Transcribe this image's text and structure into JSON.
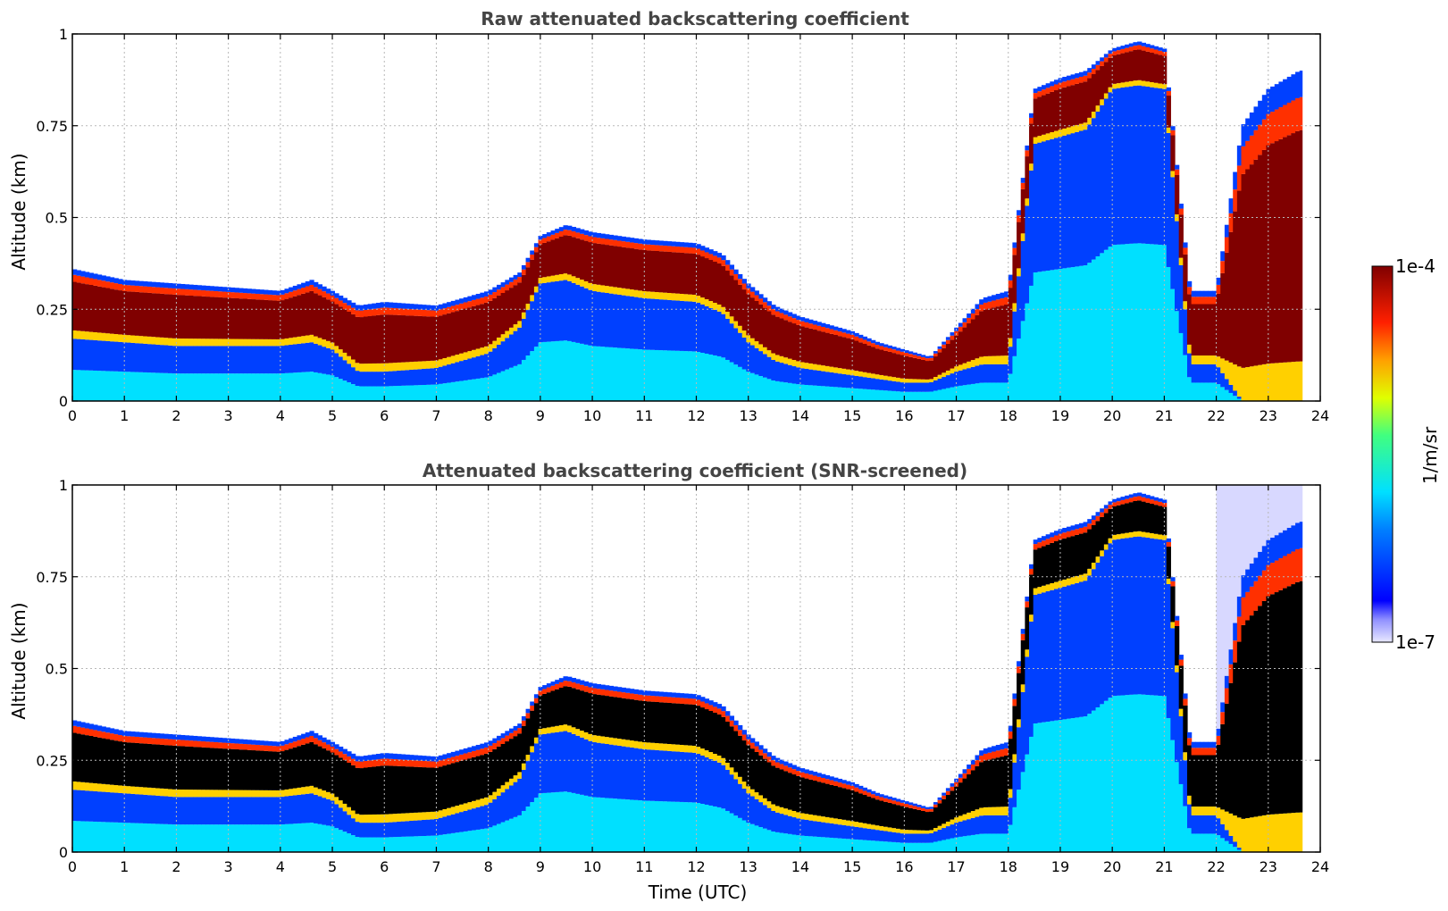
{
  "chart_data": [
    {
      "type": "heatmap",
      "title": "Raw attenuated backscattering coefficient",
      "xlabel": "",
      "ylabel": "Altitude (km)",
      "xlim": [
        0,
        24
      ],
      "ylim": [
        0,
        1
      ],
      "x_ticks": [
        "0",
        "1",
        "2",
        "3",
        "4",
        "5",
        "6",
        "7",
        "8",
        "9",
        "10",
        "11",
        "12",
        "13",
        "14",
        "15",
        "16",
        "17",
        "18",
        "19",
        "20",
        "21",
        "22",
        "23",
        "24"
      ],
      "y_ticks": [
        "0",
        "0.25",
        "0.5",
        "0.75",
        "1"
      ],
      "grid": true,
      "layer_profile": {
        "time_utc": [
          0,
          1,
          2,
          3,
          4,
          4.6,
          5,
          5.5,
          6,
          7,
          8,
          8.6,
          9,
          9.5,
          10,
          10.5,
          11,
          12,
          12.5,
          13,
          13.5,
          14,
          14.5,
          15,
          15.5,
          16,
          16.5,
          17,
          17.5,
          18,
          18.5,
          19,
          19.5,
          20,
          20.5,
          21,
          21.5,
          22,
          22.5,
          23,
          23.6
        ],
        "layer_top_km": [
          0.36,
          0.33,
          0.32,
          0.31,
          0.3,
          0.33,
          0.3,
          0.26,
          0.27,
          0.26,
          0.3,
          0.35,
          0.45,
          0.48,
          0.46,
          0.45,
          0.44,
          0.43,
          0.4,
          0.32,
          0.26,
          0.23,
          0.21,
          0.19,
          0.16,
          0.14,
          0.12,
          0.2,
          0.28,
          0.3,
          0.85,
          0.88,
          0.9,
          0.96,
          0.98,
          0.96,
          0.3,
          0.3,
          0.75,
          0.85,
          0.9
        ],
        "layer_bottom_km": [
          0.17,
          0.16,
          0.15,
          0.15,
          0.15,
          0.16,
          0.14,
          0.08,
          0.08,
          0.09,
          0.13,
          0.2,
          0.32,
          0.33,
          0.3,
          0.29,
          0.28,
          0.27,
          0.24,
          0.16,
          0.11,
          0.09,
          0.08,
          0.07,
          0.06,
          0.05,
          0.05,
          0.08,
          0.1,
          0.1,
          0.7,
          0.72,
          0.74,
          0.85,
          0.86,
          0.85,
          0.1,
          0.1,
          0.0,
          0.0,
          0.0
        ]
      }
    },
    {
      "type": "heatmap",
      "title": "Attenuated backscattering coefficient (SNR-screened)",
      "xlabel": "Time (UTC)",
      "ylabel": "Altitude (km)",
      "xlim": [
        0,
        24
      ],
      "ylim": [
        0,
        1
      ],
      "x_ticks": [
        "0",
        "1",
        "2",
        "3",
        "4",
        "5",
        "6",
        "7",
        "8",
        "9",
        "10",
        "11",
        "12",
        "13",
        "14",
        "15",
        "16",
        "17",
        "18",
        "19",
        "20",
        "21",
        "22",
        "23",
        "24"
      ],
      "y_ticks": [
        "0",
        "0.25",
        "0.5",
        "0.75",
        "1"
      ],
      "grid": true,
      "screened": true
    }
  ],
  "colorbar": {
    "label": "1/m/sr",
    "max_label": "1e-4",
    "min_label": "1e-7",
    "scale": "log",
    "range": [
      1e-07,
      0.0001
    ],
    "colormap": "jet"
  }
}
